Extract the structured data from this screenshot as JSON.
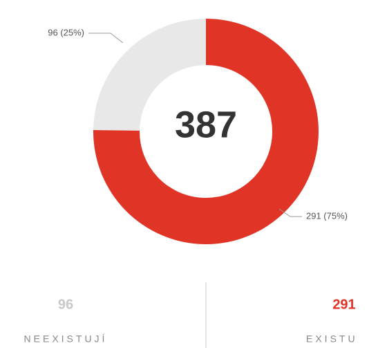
{
  "chart_data": {
    "type": "pie",
    "donut": true,
    "total": 387,
    "categories": [
      "NEEXISTUJÍ",
      "EXISTU"
    ],
    "values": [
      96,
      291
    ],
    "value_labels": [
      "96 (25%)",
      "291 (75%)"
    ],
    "colors": [
      "#e8e8e8",
      "#e03526"
    ],
    "stat_colors": [
      "#c8c8c8",
      "#e03526"
    ]
  }
}
